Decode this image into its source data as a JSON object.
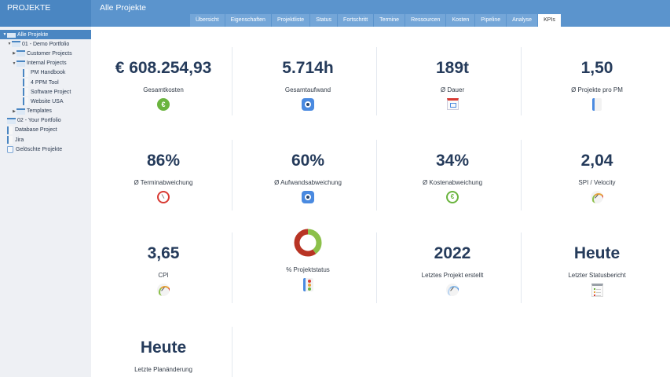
{
  "sidebar": {
    "title": "PROJEKTE",
    "items": [
      {
        "label": "Alle Projekte",
        "type": "folder",
        "level": 0,
        "arrow": "▼",
        "selected": true
      },
      {
        "label": "01 - Demo Portfolio",
        "type": "folder",
        "level": 1,
        "arrow": "▼"
      },
      {
        "label": "Customer Projects",
        "type": "folder",
        "level": 2,
        "arrow": "▶"
      },
      {
        "label": "Internal Projects",
        "type": "folder",
        "level": 2,
        "arrow": "▼"
      },
      {
        "label": "PM Handbook",
        "type": "doc",
        "level": 3,
        "arrow": ""
      },
      {
        "label": "4 PPM Tool",
        "type": "doc",
        "level": 3,
        "arrow": ""
      },
      {
        "label": "Software Project",
        "type": "doc",
        "level": 3,
        "arrow": ""
      },
      {
        "label": "Website USA",
        "type": "doc",
        "level": 3,
        "arrow": ""
      },
      {
        "label": "Templates",
        "type": "folder",
        "level": 2,
        "arrow": "▶"
      },
      {
        "label": "02 - Your Portfolio",
        "type": "folder",
        "level": 1,
        "arrow": ""
      },
      {
        "label": "Database Project",
        "type": "doc",
        "level": 1,
        "arrow": ""
      },
      {
        "label": "Jira",
        "type": "doc",
        "level": 1,
        "arrow": ""
      },
      {
        "label": "Gelöschte Projekte",
        "type": "trash",
        "level": 1,
        "arrow": ""
      }
    ]
  },
  "header": {
    "title": "Alle Projekte",
    "tabs": [
      "Übersicht",
      "Eigenschaften",
      "Projektliste",
      "Status",
      "Fortschritt",
      "Termine",
      "Ressourcen",
      "Kosten",
      "Pipeline",
      "Analyse",
      "KPIs"
    ],
    "active_tab": "KPIs"
  },
  "kpis": [
    {
      "value": "€ 608.254,93",
      "label": "Gesamtkosten",
      "icon": "euro-icon"
    },
    {
      "value": "5.714h",
      "label": "Gesamtaufwand",
      "icon": "person-hex-icon"
    },
    {
      "value": "189t",
      "label": "Ø Dauer",
      "icon": "calendar-icon"
    },
    {
      "value": "1,50",
      "label": "Ø Projekte pro PM",
      "icon": "notebook-icon"
    },
    {
      "value": "86%",
      "label": "Ø Terminabweichung",
      "icon": "clock-icon"
    },
    {
      "value": "60%",
      "label": "Ø Aufwandsabweichung",
      "icon": "person-hex-icon"
    },
    {
      "value": "34%",
      "label": "Ø Kostenabweichung",
      "icon": "euro-ring-icon"
    },
    {
      "value": "2,04",
      "label": "SPI / Velocity",
      "icon": "gauge-icon"
    },
    {
      "value": "3,65",
      "label": "CPI",
      "icon": "gauge-euro-icon"
    },
    {
      "value": "",
      "label": "% Projektstatus",
      "icon": "traffic-light-icon",
      "donut": {
        "green": 40,
        "red": 60
      }
    },
    {
      "value": "2022",
      "label": "Letztes Projekt erstellt",
      "icon": "speedometer-icon"
    },
    {
      "value": "Heute",
      "label": "Letzter Statusbericht",
      "icon": "report-icon"
    },
    {
      "value": "Heute",
      "label": "Letzte Planänderung",
      "icon": ""
    }
  ],
  "colors": {
    "header": "#5b94cd",
    "sidebar_header": "#4a86c2",
    "kpi_value": "#253b5b",
    "donut_green": "#8cc04a",
    "donut_red": "#b83424"
  }
}
